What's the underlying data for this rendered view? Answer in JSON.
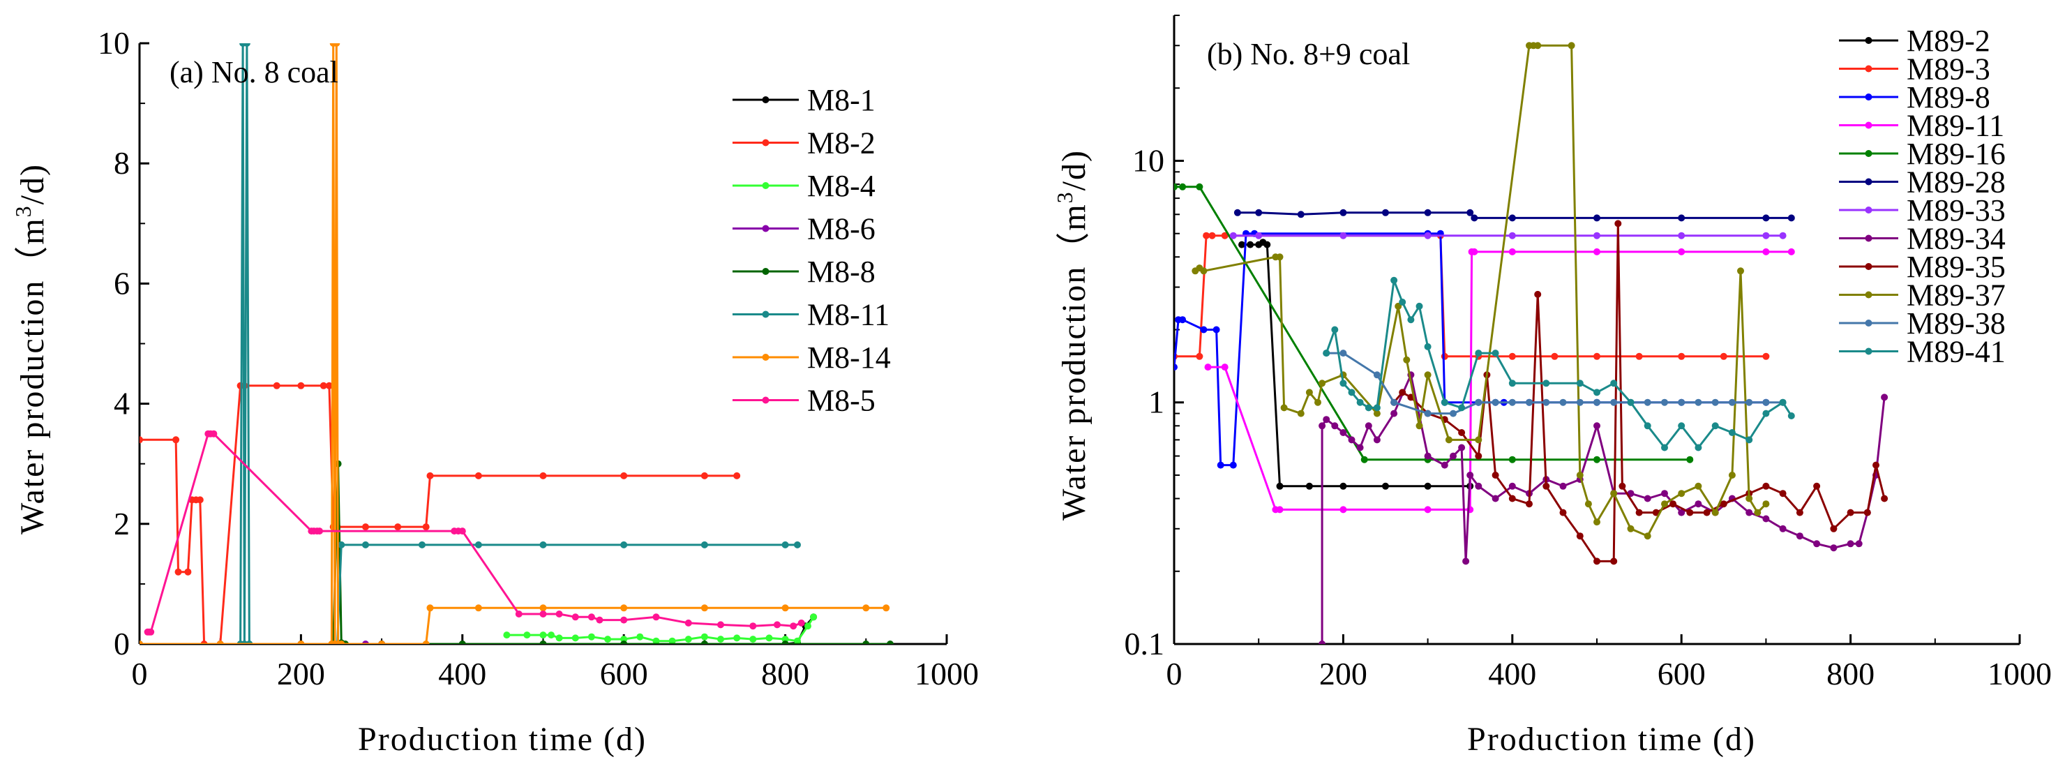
{
  "figure": {
    "panels": [
      "a",
      "b"
    ]
  },
  "chart_data": [
    {
      "type": "line",
      "title": "(a) No. 8 coal",
      "xlabel": "Production  time (d)",
      "ylabel": "Water  production（m³/d)",
      "ylabel_parts": {
        "main": "Water  production（m",
        "sup": "3",
        "end": "/d)"
      },
      "xlim": [
        0,
        1000
      ],
      "ylim": [
        0,
        10
      ],
      "y_scale": "linear",
      "x_ticks": [
        0,
        200,
        400,
        600,
        800,
        1000
      ],
      "x_tick_labels": [
        "0",
        "200",
        "400",
        "600",
        "800",
        "1000"
      ],
      "y_ticks": [
        0,
        2,
        4,
        6,
        8,
        10
      ],
      "y_tick_labels": [
        "0",
        "2",
        "4",
        "6",
        "8",
        "10"
      ],
      "legend_position": "top-right",
      "series": [
        {
          "name": "M8-1",
          "color": "#000000",
          "x": [
            0,
            100,
            200,
            300,
            400,
            500,
            600,
            700,
            800,
            815,
            825,
            835
          ],
          "y": [
            0,
            0,
            0,
            0,
            0,
            0,
            0,
            0,
            0,
            0.02,
            0.3,
            0.45
          ]
        },
        {
          "name": "M8-2",
          "color": "#ff2a1a",
          "x": [
            0,
            45,
            48,
            60,
            65,
            70,
            75,
            80,
            100,
            125,
            130,
            170,
            200,
            228,
            235,
            240,
            245,
            280,
            320,
            355,
            360,
            420,
            500,
            600,
            700,
            740
          ],
          "y": [
            3.4,
            3.4,
            1.2,
            1.2,
            2.4,
            2.4,
            2.4,
            0,
            0,
            4.3,
            4.3,
            4.3,
            4.3,
            4.3,
            4.3,
            1.95,
            1.95,
            1.95,
            1.95,
            1.95,
            2.8,
            2.8,
            2.8,
            2.8,
            2.8,
            2.8
          ]
        },
        {
          "name": "M8-4",
          "color": "#33ff33",
          "x": [
            455,
            480,
            500,
            510,
            520,
            540,
            560,
            580,
            600,
            620,
            640,
            660,
            680,
            700,
            720,
            740,
            760,
            780,
            800,
            815,
            828,
            835
          ],
          "y": [
            0.15,
            0.15,
            0.15,
            0.15,
            0.1,
            0.1,
            0.12,
            0.08,
            0.08,
            0.12,
            0.05,
            0.05,
            0.08,
            0.12,
            0.08,
            0.1,
            0.08,
            0.1,
            0.08,
            0.05,
            0.3,
            0.45
          ]
        },
        {
          "name": "M8-6",
          "color": "#8800aa",
          "x": [
            280,
            300
          ],
          "y": [
            0,
            0
          ]
        },
        {
          "name": "M8-8",
          "color": "#006400",
          "x": [
            240,
            246,
            250,
            255,
            300,
            400,
            500,
            600,
            700,
            800,
            900,
            930
          ],
          "y": [
            0,
            3.0,
            0.02,
            0,
            0,
            0,
            0,
            0,
            0,
            0,
            0,
            0
          ]
        },
        {
          "name": "M8-11",
          "color": "#1a8a8a",
          "x": [
            125,
            128,
            130,
            133,
            136,
            245,
            250,
            280,
            350,
            420,
            500,
            600,
            700,
            800,
            815
          ],
          "y": [
            0,
            10,
            0,
            10,
            0,
            0,
            1.65,
            1.65,
            1.65,
            1.65,
            1.65,
            1.65,
            1.65,
            1.65,
            1.65
          ]
        },
        {
          "name": "M8-14",
          "color": "#ff8c00",
          "x": [
            0,
            100,
            200,
            238,
            240,
            242,
            244,
            246,
            250,
            300,
            355,
            360,
            420,
            500,
            600,
            700,
            800,
            900,
            925
          ],
          "y": [
            0,
            0,
            0,
            0,
            10,
            0,
            10,
            0,
            0,
            0,
            0,
            0.6,
            0.6,
            0.6,
            0.6,
            0.6,
            0.6,
            0.6,
            0.6
          ]
        },
        {
          "name": "M8-5",
          "color": "#ff1493",
          "x": [
            10,
            12,
            14,
            85,
            88,
            92,
            213,
            216,
            220,
            223,
            390,
            395,
            400,
            470,
            500,
            520,
            540,
            560,
            570,
            600,
            640,
            680,
            720,
            760,
            790,
            810,
            820
          ],
          "y": [
            0.2,
            0.2,
            0.2,
            3.5,
            3.5,
            3.5,
            1.88,
            1.88,
            1.88,
            1.88,
            1.88,
            1.88,
            1.88,
            0.5,
            0.5,
            0.5,
            0.45,
            0.45,
            0.4,
            0.4,
            0.45,
            0.35,
            0.32,
            0.3,
            0.32,
            0.3,
            0.35
          ]
        }
      ]
    },
    {
      "type": "line",
      "title": "(b) No. 8+9 coal",
      "xlabel": "Production  time (d)",
      "ylabel": "Water  production（m³/d)",
      "ylabel_parts": {
        "main": "Water  production（m",
        "sup": "3",
        "end": "/d)"
      },
      "xlim": [
        0,
        1000
      ],
      "ylim": [
        0.1,
        40
      ],
      "y_scale": "log",
      "x_ticks": [
        0,
        200,
        400,
        600,
        800,
        1000
      ],
      "x_tick_labels": [
        "0",
        "200",
        "400",
        "600",
        "800",
        "1000"
      ],
      "y_ticks": [
        0.1,
        1,
        10
      ],
      "y_tick_labels": [
        "0.1",
        "1",
        "10"
      ],
      "legend_position": "top-right",
      "series": [
        {
          "name": "M89-2",
          "color": "#000000",
          "x": [
            80,
            90,
            100,
            105,
            110,
            125,
            160,
            200,
            250,
            300,
            350
          ],
          "y": [
            4.5,
            4.5,
            4.5,
            4.6,
            4.5,
            0.45,
            0.45,
            0.45,
            0.45,
            0.45,
            0.45
          ]
        },
        {
          "name": "M89-3",
          "color": "#ff2a1a",
          "x": [
            0,
            30,
            38,
            45,
            60,
            315,
            320,
            360,
            400,
            450,
            500,
            550,
            600,
            650,
            700
          ],
          "y": [
            1.55,
            1.55,
            4.9,
            4.9,
            4.9,
            4.9,
            1.55,
            1.55,
            1.55,
            1.55,
            1.55,
            1.55,
            1.55,
            1.55,
            1.55
          ]
        },
        {
          "name": "M89-8",
          "color": "#0000ff",
          "x": [
            0,
            5,
            10,
            35,
            50,
            55,
            70,
            85,
            95,
            300,
            315,
            320,
            360,
            380,
            390,
            420,
            500,
            600,
            700
          ],
          "y": [
            1.4,
            2.2,
            2.2,
            2.0,
            2.0,
            0.55,
            0.55,
            5.0,
            5.0,
            5.0,
            5.0,
            1.0,
            1.0,
            1.0,
            1.0,
            1.0,
            1.0,
            1.0,
            1.0
          ]
        },
        {
          "name": "M89-11",
          "color": "#ff00ff",
          "x": [
            40,
            60,
            120,
            125,
            200,
            300,
            350,
            352,
            355,
            400,
            500,
            600,
            700,
            730
          ],
          "y": [
            1.4,
            1.4,
            0.36,
            0.36,
            0.36,
            0.36,
            0.36,
            4.2,
            4.2,
            4.2,
            4.2,
            4.2,
            4.2,
            4.2
          ]
        },
        {
          "name": "M89-16",
          "color": "#008000",
          "x": [
            0,
            10,
            30,
            225,
            300,
            400,
            500,
            610
          ],
          "y": [
            7.8,
            7.8,
            7.8,
            0.58,
            0.58,
            0.58,
            0.58,
            0.58
          ]
        },
        {
          "name": "M89-28",
          "color": "#000080",
          "x": [
            75,
            100,
            150,
            200,
            250,
            300,
            350,
            355,
            400,
            500,
            600,
            700,
            730
          ],
          "y": [
            6.1,
            6.1,
            6.0,
            6.1,
            6.1,
            6.1,
            6.1,
            5.8,
            5.8,
            5.8,
            5.8,
            5.8,
            5.8
          ]
        },
        {
          "name": "M89-33",
          "color": "#9933ff",
          "x": [
            70,
            100,
            200,
            300,
            400,
            500,
            600,
            700,
            720
          ],
          "y": [
            4.9,
            4.9,
            4.9,
            4.9,
            4.9,
            4.9,
            4.9,
            4.9,
            4.9
          ]
        },
        {
          "name": "M89-34",
          "color": "#800080",
          "x": [
            175,
            175,
            180,
            190,
            200,
            210,
            220,
            230,
            240,
            260,
            280,
            300,
            320,
            330,
            340,
            345,
            350,
            360,
            380,
            400,
            420,
            440,
            460,
            480,
            500,
            520,
            540,
            560,
            580,
            600,
            620,
            640,
            660,
            680,
            700,
            720,
            740,
            760,
            780,
            800,
            810,
            820,
            830,
            840
          ],
          "y": [
            0.1,
            0.8,
            0.85,
            0.8,
            0.75,
            0.7,
            0.65,
            0.8,
            0.7,
            0.9,
            1.3,
            0.6,
            0.55,
            0.6,
            0.65,
            0.22,
            0.5,
            0.45,
            0.4,
            0.45,
            0.42,
            0.48,
            0.45,
            0.48,
            0.8,
            0.42,
            0.42,
            0.4,
            0.42,
            0.35,
            0.38,
            0.35,
            0.4,
            0.35,
            0.33,
            0.3,
            0.28,
            0.26,
            0.25,
            0.26,
            0.26,
            0.35,
            0.5,
            1.05
          ]
        },
        {
          "name": "M89-35",
          "color": "#8b0000",
          "x": [
            260,
            270,
            280,
            300,
            320,
            340,
            360,
            370,
            380,
            400,
            420,
            430,
            440,
            460,
            480,
            500,
            520,
            525,
            530,
            550,
            570,
            590,
            610,
            630,
            650,
            680,
            700,
            720,
            740,
            760,
            780,
            800,
            820,
            830,
            840
          ],
          "y": [
            1.0,
            1.1,
            1.05,
            0.9,
            0.85,
            0.75,
            0.6,
            1.3,
            0.5,
            0.4,
            0.38,
            2.8,
            0.45,
            0.35,
            0.28,
            0.22,
            0.22,
            5.5,
            0.45,
            0.35,
            0.35,
            0.38,
            0.35,
            0.35,
            0.38,
            0.42,
            0.45,
            0.42,
            0.35,
            0.45,
            0.3,
            0.35,
            0.35,
            0.55,
            0.4
          ]
        },
        {
          "name": "M89-37",
          "color": "#808000",
          "x": [
            25,
            30,
            35,
            120,
            125,
            130,
            150,
            160,
            170,
            175,
            200,
            240,
            265,
            275,
            290,
            300,
            325,
            360,
            420,
            425,
            430,
            470,
            480,
            490,
            500,
            520,
            540,
            560,
            580,
            600,
            620,
            640,
            660,
            670,
            680,
            690,
            700
          ],
          "y": [
            3.5,
            3.6,
            3.5,
            4.0,
            4.0,
            0.95,
            0.9,
            1.1,
            1.0,
            1.2,
            1.3,
            0.9,
            2.5,
            1.5,
            0.8,
            1.3,
            0.7,
            0.7,
            30,
            30,
            30,
            30,
            0.5,
            0.38,
            0.32,
            0.42,
            0.3,
            0.28,
            0.38,
            0.42,
            0.45,
            0.35,
            0.5,
            3.5,
            0.4,
            0.35,
            0.38
          ]
        },
        {
          "name": "M89-38",
          "color": "#4477aa",
          "x": [
            180,
            200,
            240,
            260,
            300,
            330,
            360,
            380,
            400,
            420,
            440,
            460,
            480,
            500,
            520,
            540,
            560,
            580,
            600,
            620,
            640,
            660,
            680,
            700,
            720
          ],
          "y": [
            1.6,
            1.6,
            1.3,
            1.0,
            0.9,
            0.9,
            1.0,
            1.0,
            1.0,
            1.0,
            1.0,
            1.0,
            1.0,
            1.0,
            1.0,
            1.0,
            1.0,
            1.0,
            1.0,
            1.0,
            1.0,
            1.0,
            1.0,
            1.0,
            1.0
          ]
        },
        {
          "name": "M89-41",
          "color": "#1a8a8a",
          "x": [
            180,
            190,
            200,
            210,
            220,
            230,
            240,
            260,
            270,
            280,
            290,
            300,
            320,
            340,
            360,
            380,
            400,
            440,
            480,
            500,
            520,
            540,
            560,
            580,
            600,
            620,
            640,
            660,
            680,
            700,
            720,
            730
          ],
          "y": [
            1.6,
            2.0,
            1.2,
            1.1,
            1.0,
            0.95,
            0.95,
            3.2,
            2.6,
            2.2,
            2.5,
            1.7,
            1.0,
            0.95,
            1.6,
            1.6,
            1.2,
            1.2,
            1.2,
            1.1,
            1.2,
            1.0,
            0.8,
            0.65,
            0.8,
            0.65,
            0.8,
            0.75,
            0.7,
            0.9,
            1.0,
            0.88
          ]
        }
      ]
    }
  ]
}
